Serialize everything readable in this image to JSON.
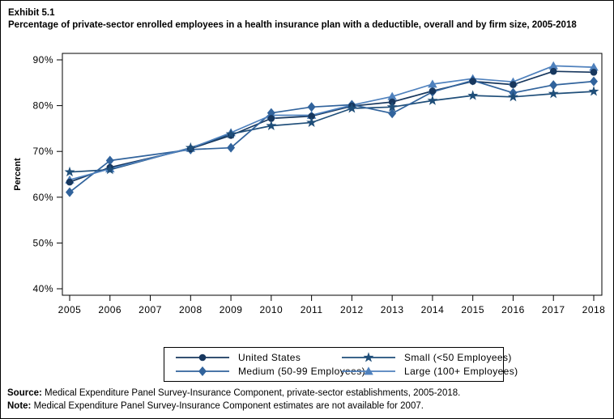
{
  "page": {
    "exhibit_label": "Exhibit 5.1",
    "title": "Percentage of private-sector enrolled employees in a health insurance plan with a deductible, overall and by firm size, 2005-2018",
    "source_label": "Source:",
    "source_text": " Medical Expenditure Panel Survey-Insurance Component, private-sector establishments, 2005-2018.",
    "note_label": "Note:",
    "note_text": " Medical Expenditure Panel Survey-Insurance Component estimates are not available for 2007."
  },
  "chart_data": {
    "type": "line",
    "title": "Percentage of private-sector enrolled employees in a health insurance plan with a deductible, overall and by firm size, 2005-2018",
    "xlabel": "",
    "ylabel": "Percent",
    "x": [
      2005,
      2006,
      2007,
      2008,
      2009,
      2010,
      2011,
      2012,
      2013,
      2014,
      2015,
      2016,
      2017,
      2018
    ],
    "x_tick_labels": [
      "2005",
      "2006",
      "2007",
      "2008",
      "2009",
      "2010",
      "2011",
      "2012",
      "2013",
      "2014",
      "2015",
      "2016",
      "2017",
      "2018"
    ],
    "y_ticks": [
      40,
      50,
      60,
      70,
      80,
      90
    ],
    "y_tick_labels": [
      "40%",
      "50%",
      "60%",
      "70%",
      "80%",
      "90%"
    ],
    "ylim": [
      38.5,
      91.5
    ],
    "grid": false,
    "legend_position": "bottom-center-boxed",
    "missing_data_note": "Estimates are not available for 2007; lines connect 2006 to 2008.",
    "series": [
      {
        "name": "United States",
        "marker": "circle",
        "color": "#17375E",
        "values": [
          63.3,
          66.5,
          null,
          70.6,
          73.5,
          77.2,
          77.7,
          79.9,
          80.8,
          83.2,
          85.3,
          84.6,
          87.5,
          87.3
        ]
      },
      {
        "name": "Small (<50 Employees)",
        "marker": "star",
        "color": "#1F4E79",
        "values": [
          65.5,
          66.0,
          null,
          70.8,
          73.8,
          75.6,
          76.3,
          79.4,
          79.7,
          81.1,
          82.2,
          81.9,
          82.6,
          83.1
        ]
      },
      {
        "name": "Medium (50-99 Employees)",
        "marker": "diamond",
        "color": "#31639C",
        "values": [
          61.1,
          68.0,
          null,
          70.4,
          70.8,
          78.4,
          79.7,
          80.2,
          78.3,
          83.0,
          85.5,
          82.8,
          84.5,
          85.3
        ]
      },
      {
        "name": "Large (100+ Employees)",
        "marker": "triangle",
        "color": "#4F81BD",
        "values": [
          63.8,
          66.2,
          null,
          70.7,
          74.1,
          77.9,
          77.9,
          80.1,
          82.0,
          84.7,
          85.9,
          85.2,
          88.7,
          88.4
        ]
      }
    ],
    "legend_order": [
      0,
      1,
      2,
      3
    ]
  }
}
